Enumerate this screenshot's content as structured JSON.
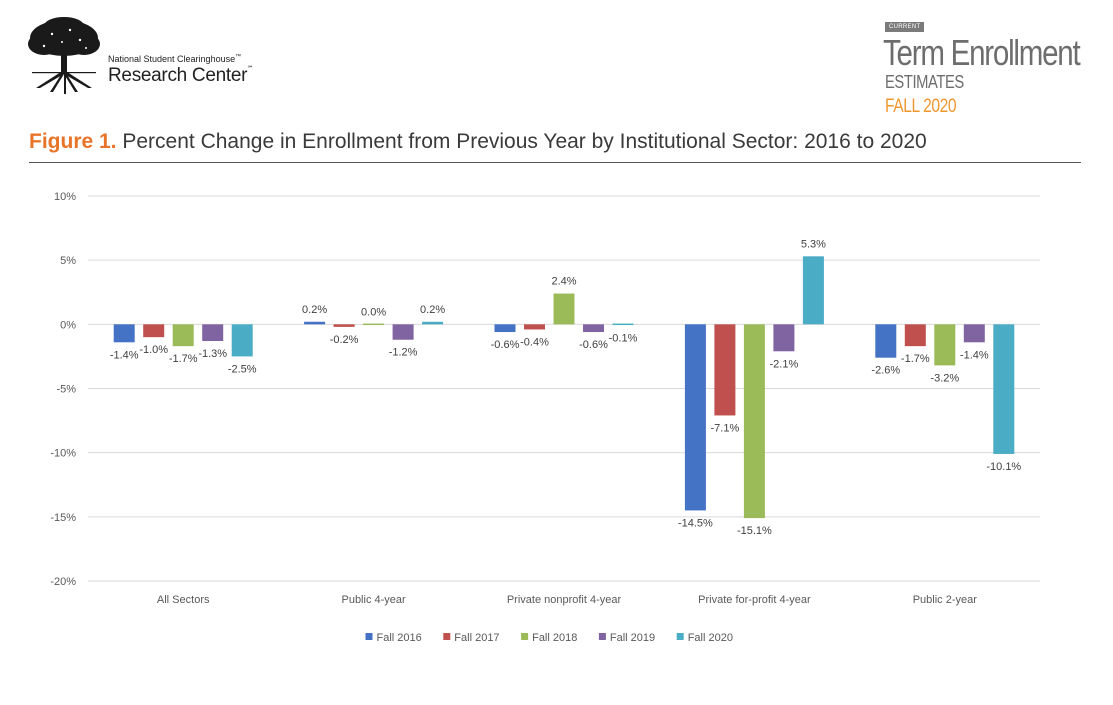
{
  "header": {
    "org_line1": "National Student Clearinghouse",
    "org_line2": "Research Center",
    "tm1": "™",
    "tm2": "℠",
    "report_badge": "CURRENT",
    "report_title": "Term Enrollment",
    "report_subtitle": "ESTIMATES",
    "report_term": "FALL 2020",
    "logo_icon": "tree-icon"
  },
  "figure": {
    "number": "Figure 1.",
    "title": "Percent Change in Enrollment from Previous Year by Institutional Sector: 2016 to 2020"
  },
  "chart_data": {
    "type": "bar",
    "categories": [
      "All Sectors",
      "Public 4-year",
      "Private nonprofit 4-year",
      "Private for-profit 4-year",
      "Public 2-year"
    ],
    "series": [
      {
        "name": "Fall 2016",
        "color": "#4472c4",
        "values": [
          -1.4,
          0.2,
          -0.6,
          -14.5,
          -2.6
        ],
        "labels": [
          "-1.4%",
          "0.2%",
          "-0.6%",
          "-14.5%",
          "-2.6%"
        ]
      },
      {
        "name": "Fall 2017",
        "color": "#c0504d",
        "values": [
          -1.0,
          -0.2,
          -0.4,
          -7.1,
          -1.7
        ],
        "labels": [
          "-1.0%",
          "-0.2%",
          "-0.4%",
          "-7.1%",
          "-1.7%"
        ]
      },
      {
        "name": "Fall 2018",
        "color": "#9bbb59",
        "values": [
          -1.7,
          0.0,
          2.4,
          -15.1,
          -3.2
        ],
        "labels": [
          "-1.7%",
          "0.0%",
          "2.4%",
          "-15.1%",
          "-3.2%"
        ]
      },
      {
        "name": "Fall 2019",
        "color": "#8064a2",
        "values": [
          -1.3,
          -1.2,
          -0.6,
          -2.1,
          -1.4
        ],
        "labels": [
          "-1.3%",
          "-1.2%",
          "-0.6%",
          "-2.1%",
          "-1.4%"
        ]
      },
      {
        "name": "Fall 2020",
        "color": "#4bacc6",
        "values": [
          -2.5,
          0.2,
          -0.1,
          5.3,
          -10.1
        ],
        "labels": [
          "-2.5%",
          "0.2%",
          "-0.1%",
          "5.3%",
          "-10.1%"
        ]
      }
    ],
    "yticks": [
      10,
      5,
      0,
      -5,
      -10,
      -15,
      -20
    ],
    "ytick_labels": [
      "10%",
      "5%",
      "0%",
      "-5%",
      "-10%",
      "-15%",
      "-20%"
    ],
    "ylim": [
      -20,
      10
    ],
    "grid": true,
    "legend_position": "bottom"
  }
}
